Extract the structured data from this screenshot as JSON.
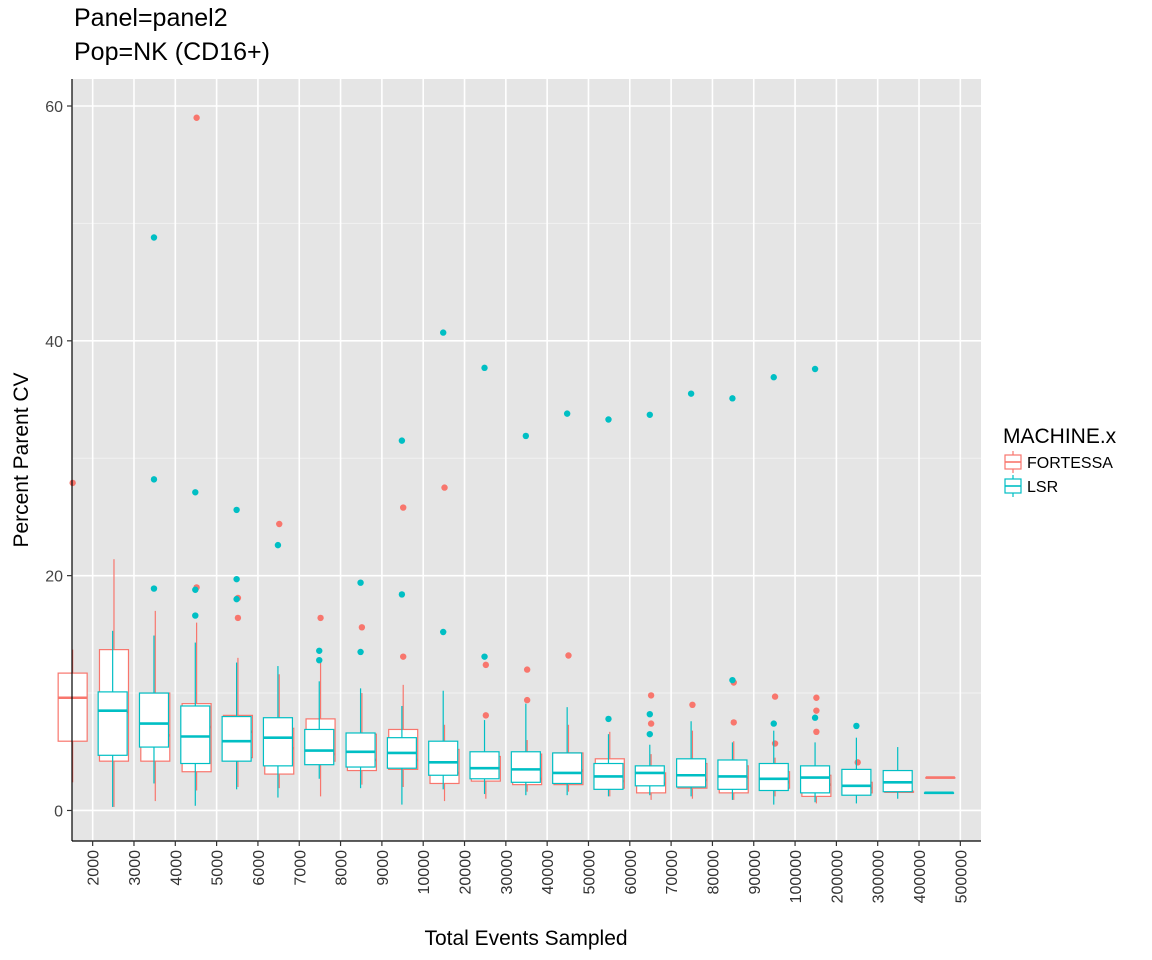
{
  "chart_data": {
    "type": "boxplot",
    "title": "Panel=panel2",
    "subtitle": "Pop=NK (CD16+)",
    "xlabel": "Total Events Sampled",
    "ylabel": "Percent Parent CV",
    "ylim": [
      -2.6,
      62.3
    ],
    "yticks": [
      0,
      20,
      40,
      60
    ],
    "grid": true,
    "legend": {
      "title": "MACHINE.x",
      "placement": "right",
      "entries": [
        {
          "name": "FORTESSA",
          "color": "#F8766D"
        },
        {
          "name": "LSR",
          "color": "#00BFC4"
        }
      ]
    },
    "categories": [
      "2000",
      "3000",
      "4000",
      "5000",
      "6000",
      "7000",
      "8000",
      "9000",
      "10000",
      "20000",
      "30000",
      "40000",
      "50000",
      "60000",
      "70000",
      "80000",
      "90000",
      "100000",
      "200000",
      "300000",
      "400000",
      "500000"
    ],
    "series": [
      {
        "name": "FORTESSA",
        "color": "#F8766D",
        "boxes": [
          {
            "category": "2000",
            "min": 2.4,
            "q1": 5.9,
            "median": 9.6,
            "q3": 11.7,
            "max": 13.7,
            "outliers": [
              27.9
            ]
          },
          {
            "category": "3000",
            "min": 0.3,
            "q1": 4.2,
            "median": 8.4,
            "q3": 13.7,
            "max": 21.4,
            "outliers": []
          },
          {
            "category": "4000",
            "min": 0.8,
            "q1": 4.2,
            "median": 6.4,
            "q3": 10.0,
            "max": 17.0,
            "outliers": []
          },
          {
            "category": "5000",
            "min": 1.7,
            "q1": 3.3,
            "median": 7.1,
            "q3": 9.1,
            "max": 16.0,
            "outliers": [
              19.0,
              59.0
            ]
          },
          {
            "category": "6000",
            "min": 2.0,
            "q1": 4.5,
            "median": 6.7,
            "q3": 8.1,
            "max": 13.0,
            "outliers": [
              16.4,
              18.1
            ]
          },
          {
            "category": "7000",
            "min": 1.9,
            "q1": 3.1,
            "median": 5.3,
            "q3": 7.0,
            "max": 11.6,
            "outliers": [
              24.4
            ]
          },
          {
            "category": "8000",
            "min": 1.2,
            "q1": 4.2,
            "median": 4.8,
            "q3": 7.8,
            "max": 12.7,
            "outliers": [
              16.4
            ]
          },
          {
            "category": "9000",
            "min": 2.2,
            "q1": 3.4,
            "median": 4.3,
            "q3": 6.5,
            "max": 10.0,
            "outliers": [
              15.6
            ]
          },
          {
            "category": "10000",
            "min": 2.0,
            "q1": 3.5,
            "median": 4.3,
            "q3": 6.9,
            "max": 10.7,
            "outliers": [
              13.1,
              25.8
            ]
          },
          {
            "category": "20000",
            "min": 0.8,
            "q1": 2.3,
            "median": 3.2,
            "q3": 5.2,
            "max": 7.3,
            "outliers": [
              27.5
            ]
          },
          {
            "category": "30000",
            "min": 1.0,
            "q1": 2.5,
            "median": 3.6,
            "q3": 4.6,
            "max": 5.0,
            "outliers": [
              8.1,
              12.4
            ]
          },
          {
            "category": "40000",
            "min": 1.6,
            "q1": 2.2,
            "median": 2.7,
            "q3": 4.8,
            "max": 6.0,
            "outliers": [
              9.4,
              12.0
            ]
          },
          {
            "category": "50000",
            "min": 1.6,
            "q1": 2.2,
            "median": 3.4,
            "q3": 4.9,
            "max": 7.3,
            "outliers": [
              13.2
            ]
          },
          {
            "category": "60000",
            "min": 1.2,
            "q1": 1.9,
            "median": 2.5,
            "q3": 4.4,
            "max": 6.7,
            "outliers": []
          },
          {
            "category": "70000",
            "min": 0.9,
            "q1": 1.5,
            "median": 2.3,
            "q3": 3.2,
            "max": 4.8,
            "outliers": [
              7.4,
              9.8
            ]
          },
          {
            "category": "80000",
            "min": 1.0,
            "q1": 1.9,
            "median": 2.6,
            "q3": 4.0,
            "max": 6.8,
            "outliers": [
              9.0
            ]
          },
          {
            "category": "90000",
            "min": 0.9,
            "q1": 1.5,
            "median": 2.8,
            "q3": 3.8,
            "max": 5.9,
            "outliers": [
              7.5,
              10.9
            ]
          },
          {
            "category": "100000",
            "min": 1.2,
            "q1": 1.9,
            "median": 2.4,
            "q3": 3.3,
            "max": 4.5,
            "outliers": [
              5.7,
              9.7
            ]
          },
          {
            "category": "200000",
            "min": 0.6,
            "q1": 1.2,
            "median": 2.2,
            "q3": 3.0,
            "max": 3.7,
            "outliers": [
              6.7,
              8.5,
              9.6
            ]
          },
          {
            "category": "300000",
            "min": 1.3,
            "q1": 1.5,
            "median": 1.9,
            "q3": 2.4,
            "max": 2.6,
            "outliers": [
              4.1
            ]
          },
          {
            "category": "400000",
            "min": 1.6,
            "q1": 1.6,
            "median": 1.6,
            "q3": 1.6,
            "max": 1.6,
            "outliers": []
          },
          {
            "category": "500000",
            "min": 2.8,
            "q1": 2.8,
            "median": 2.8,
            "q3": 2.8,
            "max": 2.8,
            "outliers": []
          }
        ]
      },
      {
        "name": "LSR",
        "color": "#00BFC4",
        "boxes": [
          {
            "category": "2000",
            "min": 0.3,
            "q1": 4.7,
            "median": 8.5,
            "q3": 10.1,
            "max": 15.3,
            "outliers": []
          },
          {
            "category": "3000",
            "min": 2.3,
            "q1": 5.4,
            "median": 7.4,
            "q3": 10.0,
            "max": 14.9,
            "outliers": [
              18.9,
              28.2,
              48.8
            ]
          },
          {
            "category": "4000",
            "min": 0.4,
            "q1": 4.0,
            "median": 6.3,
            "q3": 8.9,
            "max": 14.3,
            "outliers": [
              16.6,
              18.8,
              27.1
            ]
          },
          {
            "category": "5000",
            "min": 1.8,
            "q1": 4.2,
            "median": 5.9,
            "q3": 8.0,
            "max": 12.6,
            "outliers": [
              18.0,
              19.7,
              25.6
            ]
          },
          {
            "category": "6000",
            "min": 1.1,
            "q1": 3.8,
            "median": 6.2,
            "q3": 7.9,
            "max": 12.3,
            "outliers": [
              22.6
            ]
          },
          {
            "category": "7000",
            "min": 2.7,
            "q1": 3.9,
            "median": 5.1,
            "q3": 6.9,
            "max": 11.0,
            "outliers": [
              12.8,
              13.6
            ]
          },
          {
            "category": "8000",
            "min": 1.9,
            "q1": 3.7,
            "median": 5.0,
            "q3": 6.6,
            "max": 10.4,
            "outliers": [
              13.5,
              19.4
            ]
          },
          {
            "category": "9000",
            "min": 0.5,
            "q1": 3.6,
            "median": 4.9,
            "q3": 6.2,
            "max": 8.9,
            "outliers": [
              18.4,
              31.5
            ]
          },
          {
            "category": "10000",
            "min": 1.8,
            "q1": 3.0,
            "median": 4.1,
            "q3": 5.9,
            "max": 10.2,
            "outliers": [
              15.2,
              40.7
            ]
          },
          {
            "category": "20000",
            "min": 1.4,
            "q1": 2.7,
            "median": 3.6,
            "q3": 5.0,
            "max": 7.7,
            "outliers": [
              13.1,
              37.7
            ]
          },
          {
            "category": "30000",
            "min": 1.3,
            "q1": 2.4,
            "median": 3.5,
            "q3": 5.0,
            "max": 9.1,
            "outliers": [
              31.9
            ]
          },
          {
            "category": "40000",
            "min": 1.3,
            "q1": 2.3,
            "median": 3.2,
            "q3": 4.9,
            "max": 8.8,
            "outliers": [
              33.8
            ]
          },
          {
            "category": "50000",
            "min": 1.2,
            "q1": 1.8,
            "median": 2.9,
            "q3": 4.0,
            "max": 6.5,
            "outliers": [
              7.8,
              33.3
            ]
          },
          {
            "category": "60000",
            "min": 1.3,
            "q1": 2.1,
            "median": 3.2,
            "q3": 3.8,
            "max": 5.6,
            "outliers": [
              6.5,
              8.2,
              33.7
            ]
          },
          {
            "category": "70000",
            "min": 1.2,
            "q1": 2.0,
            "median": 3.0,
            "q3": 4.4,
            "max": 7.6,
            "outliers": [
              35.5
            ]
          },
          {
            "category": "80000",
            "min": 0.9,
            "q1": 1.8,
            "median": 2.9,
            "q3": 4.3,
            "max": 5.8,
            "outliers": [
              11.1,
              35.1
            ]
          },
          {
            "category": "90000",
            "min": 0.5,
            "q1": 1.7,
            "median": 2.7,
            "q3": 4.0,
            "max": 6.8,
            "outliers": [
              7.4,
              36.9
            ]
          },
          {
            "category": "100000",
            "min": 0.7,
            "q1": 1.5,
            "median": 2.8,
            "q3": 3.8,
            "max": 5.8,
            "outliers": [
              7.9,
              37.6
            ]
          },
          {
            "category": "200000",
            "min": 0.6,
            "q1": 1.3,
            "median": 2.1,
            "q3": 3.5,
            "max": 6.2,
            "outliers": [
              7.2
            ]
          },
          {
            "category": "300000",
            "min": 1.0,
            "q1": 1.6,
            "median": 2.4,
            "q3": 3.4,
            "max": 5.4,
            "outliers": []
          },
          {
            "category": "400000",
            "min": 1.5,
            "q1": 1.5,
            "median": 1.5,
            "q3": 1.5,
            "max": 1.5,
            "outliers": []
          }
        ]
      }
    ]
  }
}
